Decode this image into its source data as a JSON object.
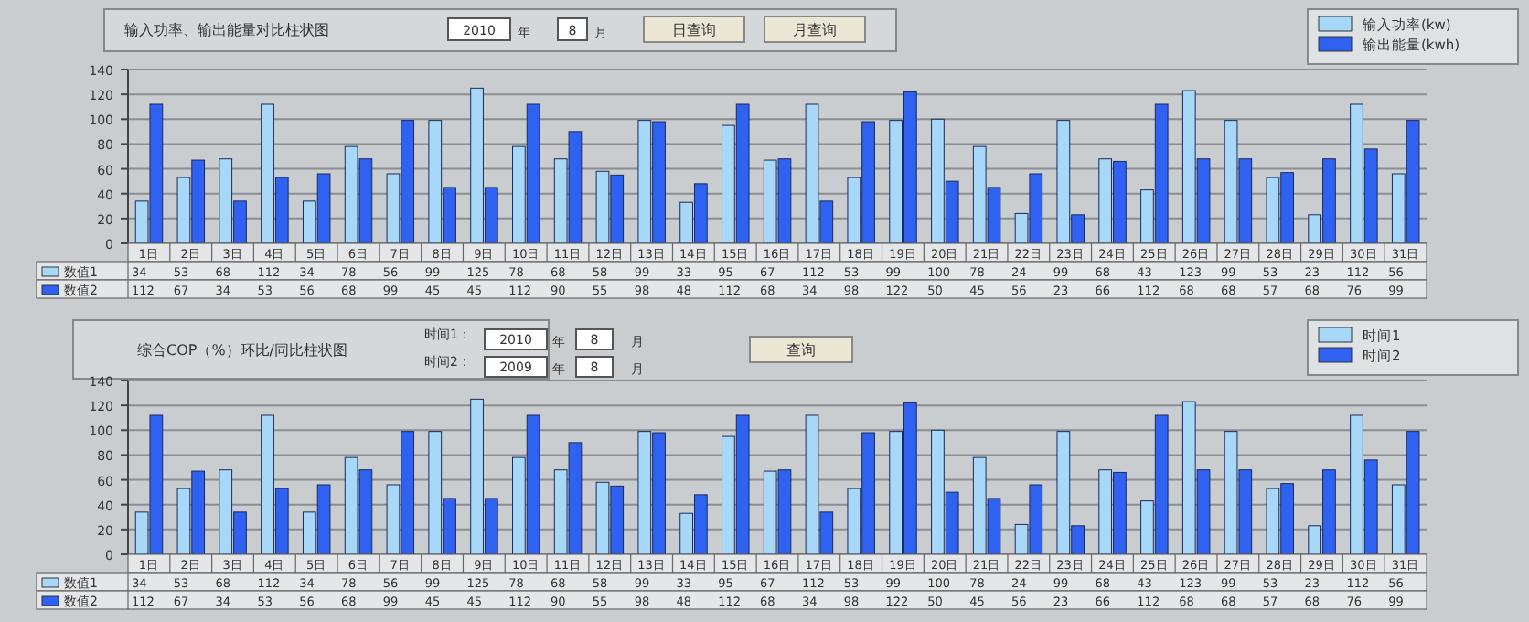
{
  "chart_data": [
    {
      "type": "bar",
      "title": "输入功率、输出能量对比柱状图",
      "categories": [
        "1日",
        "2日",
        "3日",
        "4日",
        "5日",
        "6日",
        "7日",
        "8日",
        "9日",
        "10日",
        "11日",
        "12日",
        "13日",
        "14日",
        "15日",
        "16日",
        "17日",
        "18日",
        "19日",
        "20日",
        "21日",
        "22日",
        "23日",
        "24日",
        "25日",
        "26日",
        "27日",
        "28日",
        "29日",
        "30日",
        "31日"
      ],
      "series": [
        {
          "name": "输入功率(kw)",
          "color": "#a8d8f8",
          "values": [
            34,
            53,
            68,
            112,
            34,
            78,
            56,
            99,
            125,
            78,
            68,
            58,
            99,
            33,
            95,
            67,
            112,
            53,
            99,
            100,
            78,
            24,
            99,
            68,
            43,
            123,
            99,
            53,
            23,
            112,
            56
          ]
        },
        {
          "name": "输出能量(kwh)",
          "color": "#2f62f0",
          "values": [
            112,
            67,
            34,
            53,
            56,
            68,
            99,
            45,
            45,
            112,
            90,
            55,
            98,
            48,
            112,
            68,
            34,
            98,
            122,
            50,
            45,
            56,
            23,
            66,
            112,
            68,
            68,
            57,
            68,
            76,
            99
          ]
        }
      ],
      "ylim": [
        0,
        140
      ],
      "yticks": [
        0,
        20,
        40,
        60,
        80,
        100,
        120,
        140
      ],
      "grid": "y",
      "legend": "top right",
      "data_labels": true,
      "annotations": [
        "2010",
        "年",
        "8",
        "月",
        "日查询",
        "月查询",
        "数值1",
        "数值2"
      ]
    },
    {
      "type": "bar",
      "title": "综合COP（%）环比/同比柱状图",
      "categories": [
        "1日",
        "2日",
        "3日",
        "4日",
        "5日",
        "6日",
        "7日",
        "8日",
        "9日",
        "10日",
        "11日",
        "12日",
        "13日",
        "14日",
        "15日",
        "16日",
        "17日",
        "18日",
        "19日",
        "20日",
        "21日",
        "22日",
        "23日",
        "24日",
        "25日",
        "26日",
        "27日",
        "28日",
        "29日",
        "30日",
        "31日"
      ],
      "series": [
        {
          "name": "时间1",
          "color": "#a8d8f8",
          "values": [
            34,
            53,
            68,
            112,
            34,
            78,
            56,
            99,
            125,
            78,
            68,
            58,
            99,
            33,
            95,
            67,
            112,
            53,
            99,
            100,
            78,
            24,
            99,
            68,
            43,
            123,
            99,
            53,
            23,
            112,
            56
          ]
        },
        {
          "name": "时间2",
          "color": "#2f62f0",
          "values": [
            112,
            67,
            34,
            53,
            56,
            68,
            99,
            45,
            45,
            112,
            90,
            55,
            98,
            48,
            112,
            68,
            34,
            98,
            122,
            50,
            45,
            56,
            23,
            66,
            112,
            68,
            68,
            57,
            68,
            76,
            99
          ]
        }
      ],
      "ylim": [
        0,
        140
      ],
      "yticks": [
        0,
        20,
        40,
        60,
        80,
        100,
        120,
        140
      ],
      "grid": "y",
      "legend": "top right",
      "data_labels": true,
      "annotations": [
        "时间1：",
        "2010",
        "年",
        "8",
        "月",
        "时间2：",
        "2009",
        "年",
        "8",
        "月",
        "查询",
        "数值1",
        "数值2"
      ]
    }
  ]
}
